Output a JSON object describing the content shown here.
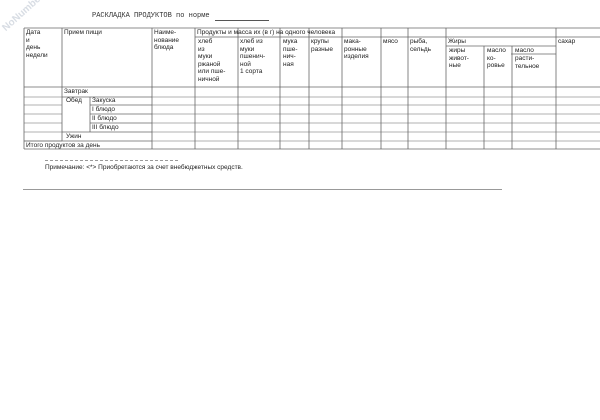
{
  "watermark": "NoNumber.ru",
  "title": "РАСКЛАДКА ПРОДУКТОВ по норме",
  "table": {
    "col_date": "Дата\nи\nдень\nнедели",
    "col_meal": "Прием пищи",
    "col_dish": "Наиме-\nнование\nблюда",
    "col_products": "Продукты и масса их (в г) на одного человека",
    "products": [
      "хлеб\nиз\nмуки\nржаной\nили пше-\nничной",
      "хлеб из\nмуки\nпшенич-\nной\n1 сорта",
      "мука\nпше-\nнич-\nная",
      "крупы\nразные",
      "мака-\nронные\nизделия",
      "мясо",
      "рыба,\nсельдь"
    ],
    "fats_label": "Жиры",
    "fats": [
      "жиры\nживот-\nные",
      "масло\nко-\nровье",
      "масло",
      "расти-\nтельное"
    ],
    "sugar": "сахар",
    "rows": {
      "breakfast": "Завтрак",
      "lunch": "Обед",
      "snack": "Закуска",
      "first": "I блюдо",
      "second": "II блюдо",
      "third": "III блюдо",
      "dinner": "Ужин",
      "total": "Итого продуктов за день"
    }
  },
  "footnote": "Примечание: <*> Приобретаются за счет внебюджетных средств."
}
